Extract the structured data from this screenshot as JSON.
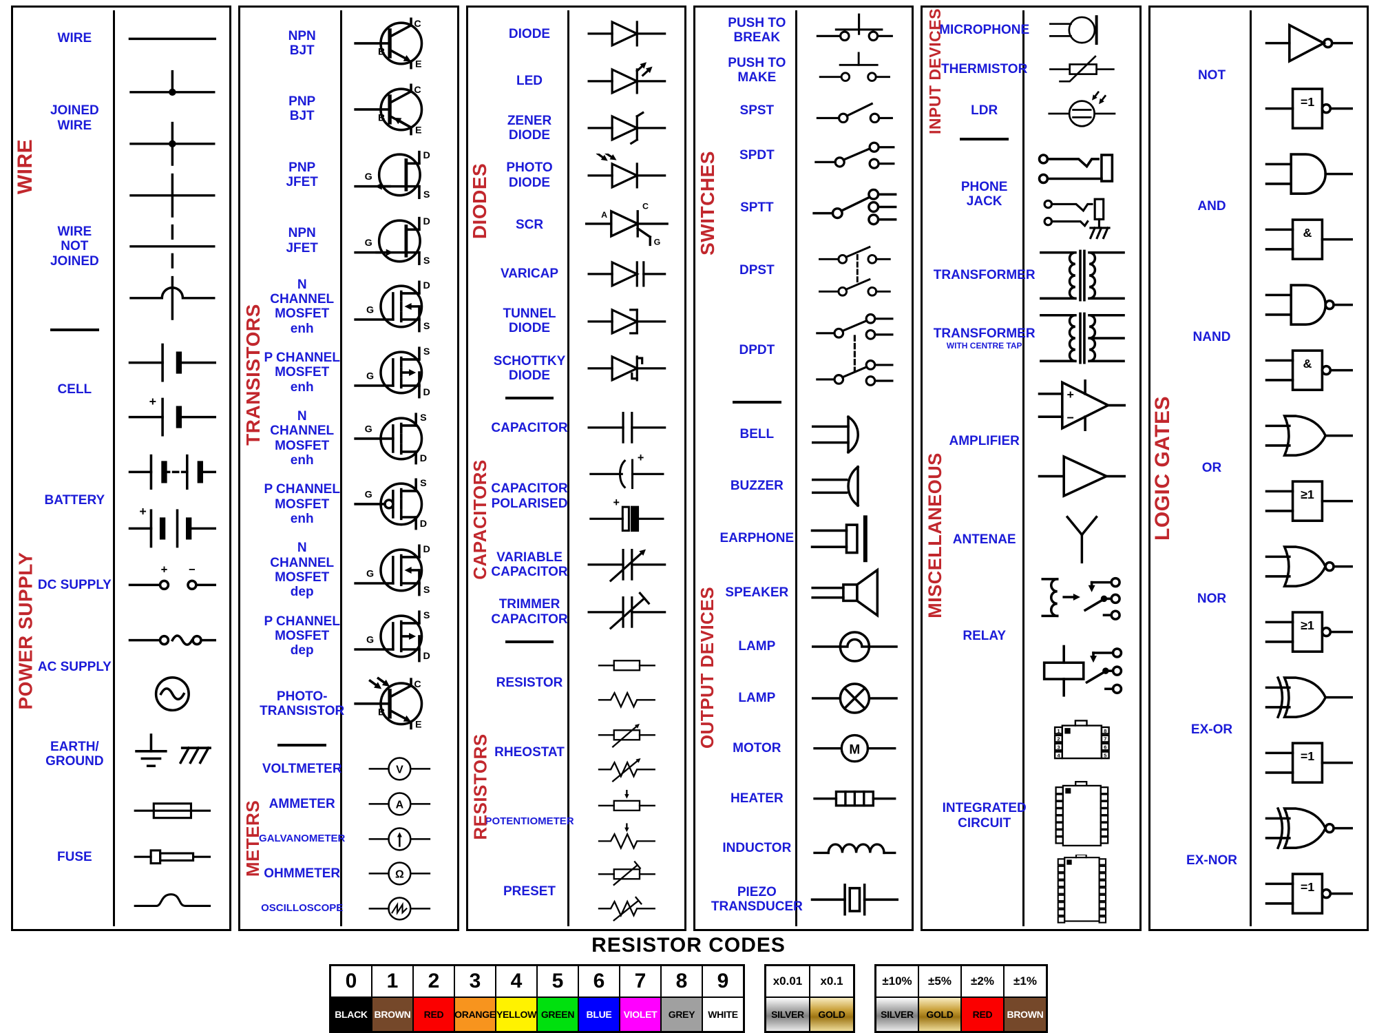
{
  "colors": {
    "label_blue": "#1b1bd8",
    "category_red": "#c1272d",
    "symbol_black": "#000000",
    "silver": "#c0c0c0",
    "gold": "#d4a437"
  },
  "glyph_text": {
    "bjt": {
      "base": "B",
      "collector": "C",
      "emitter": "E"
    },
    "fet": {
      "gate": "G",
      "drain": "D",
      "source": "S"
    },
    "scr": {
      "anode": "A",
      "cathode": "C",
      "gate": "G"
    },
    "meter": {
      "voltmeter": "V",
      "ammeter": "A",
      "ohmmeter": "Ω",
      "motor": "M"
    },
    "sign": {
      "plus": "+",
      "minus": "−"
    },
    "gate_box": {
      "not": "=1",
      "and": "&",
      "nand": "&",
      "or": "≥1",
      "nor": "≥1",
      "exor": "=1",
      "exnor": "=1"
    },
    "ic_pins_left": [
      "1",
      "2",
      "3",
      "4"
    ],
    "ic_pins_right": [
      "8",
      "7",
      "6",
      "5"
    ]
  },
  "panels": [
    {
      "sections": [
        {
          "label": "WIRE",
          "size": 30,
          "rows": [
            {
              "name": "WIRE",
              "symbols": [
                "wire"
              ],
              "h": 1.1
            },
            {
              "name": "JOINED\nWIRE",
              "symbols": [
                "joined-wire-tee",
                "joined-wire-cross"
              ],
              "h": 2
            },
            {
              "name": "WIRE\nNOT JOINED",
              "symbols": [
                "wire-crossover",
                "wire-break",
                "wire-hop"
              ],
              "h": 3
            }
          ]
        },
        {
          "divider": true
        },
        {
          "label": "POWER SUPPLY",
          "size": 28,
          "rows": [
            {
              "name": "CELL",
              "symbols": [
                "cell",
                "cell-polarity"
              ],
              "h": 2.1
            },
            {
              "name": "BATTERY",
              "symbols": [
                "battery-dashed",
                "battery-double"
              ],
              "h": 2.2
            },
            {
              "name": "DC SUPPLY",
              "symbols": [
                "dc-supply"
              ],
              "h": 1.1
            },
            {
              "name": "AC SUPPLY",
              "symbols": [
                "ac-supply-terminals",
                "ac-source"
              ],
              "h": 2.1
            },
            {
              "name": "EARTH/\nGROUND",
              "symbols": [
                "earth-ground"
              ],
              "h": 1.3
            },
            {
              "name": "FUSE",
              "symbols": [
                "fuse-box",
                "fuse-cartridge",
                "fuse-wave"
              ],
              "h": 2.7
            }
          ]
        }
      ]
    },
    {
      "sections": [
        {
          "label": "TRANSISTORS",
          "size": 28,
          "rows": [
            {
              "name": "NPN\nBJT",
              "symbols": [
                "npn-bjt"
              ],
              "h": 1.6
            },
            {
              "name": "PNP\nBJT",
              "symbols": [
                "pnp-bjt"
              ],
              "h": 1.6
            },
            {
              "name": "PNP\nJFET",
              "symbols": [
                "pnp-jfet"
              ],
              "h": 1.6
            },
            {
              "name": "NPN\nJFET",
              "symbols": [
                "npn-jfet"
              ],
              "h": 1.6
            },
            {
              "name": "N CHANNEL\nMOSFET enh",
              "symbols": [
                "mosfet-enh-n-1"
              ],
              "h": 1.6
            },
            {
              "name": "P CHANNEL\nMOSFET enh",
              "symbols": [
                "mosfet-enh-p-1"
              ],
              "h": 1.6
            },
            {
              "name": "N CHANNEL\nMOSFET enh",
              "symbols": [
                "mosfet-enh-n-2"
              ],
              "h": 1.6
            },
            {
              "name": "P CHANNEL\nMOSFET enh",
              "symbols": [
                "mosfet-enh-p-2"
              ],
              "h": 1.6
            },
            {
              "name": "N CHANNEL\nMOSFET dep",
              "symbols": [
                "mosfet-dep-n"
              ],
              "h": 1.6
            },
            {
              "name": "P CHANNEL\nMOSFET dep",
              "symbols": [
                "mosfet-dep-p"
              ],
              "h": 1.6
            },
            {
              "name": "PHOTO-\nTRANSISTOR",
              "symbols": [
                "photo-transistor"
              ],
              "h": 1.7
            }
          ]
        },
        {
          "divider": true
        },
        {
          "label": "METERS",
          "size": 26,
          "rows": [
            {
              "name": "VOLTMETER",
              "symbols": [
                "voltmeter"
              ],
              "h": 0.85
            },
            {
              "name": "AMMETER",
              "symbols": [
                "ammeter"
              ],
              "h": 0.85
            },
            {
              "name": "GALVANOMETER",
              "small": true,
              "symbols": [
                "galvanometer"
              ],
              "h": 0.85
            },
            {
              "name": "OHMMETER",
              "symbols": [
                "ohmmeter"
              ],
              "h": 0.85
            },
            {
              "name": "OSCILLOSCOPE",
              "small": true,
              "symbols": [
                "oscilloscope"
              ],
              "h": 0.85
            }
          ]
        }
      ]
    },
    {
      "sections": [
        {
          "label": "DIODES",
          "size": 28,
          "rows": [
            {
              "name": "DIODE",
              "symbols": [
                "diode"
              ],
              "h": 1.05
            },
            {
              "name": "LED",
              "symbols": [
                "led"
              ],
              "h": 1.05
            },
            {
              "name": "ZENER\nDIODE",
              "symbols": [
                "zener-diode"
              ],
              "h": 1.05
            },
            {
              "name": "PHOTO\nDIODE",
              "symbols": [
                "photo-diode"
              ],
              "h": 1.05
            },
            {
              "name": "SCR",
              "symbols": [
                "scr"
              ],
              "h": 1.15
            },
            {
              "name": "VARICAP",
              "symbols": [
                "varicap"
              ],
              "h": 1.05
            },
            {
              "name": "TUNNEL\nDIODE",
              "symbols": [
                "tunnel-diode"
              ],
              "h": 1.05
            },
            {
              "name": "SCHOTTKY\nDIODE",
              "symbols": [
                "schottky-diode"
              ],
              "h": 1.05
            }
          ]
        },
        {
          "divider": true
        },
        {
          "label": "CAPACITORS",
          "size": 26,
          "rows": [
            {
              "name": "CAPACITOR",
              "symbols": [
                "capacitor"
              ],
              "h": 1.05
            },
            {
              "name": "CAPACITOR\nPOLARISED",
              "symbols": [
                "capacitor-polarised-curved",
                "capacitor-polarised-block"
              ],
              "h": 2.0
            },
            {
              "name": "VARIABLE\nCAPACITOR",
              "symbols": [
                "variable-capacitor"
              ],
              "h": 1.05
            },
            {
              "name": "TRIMMER\nCAPACITOR",
              "symbols": [
                "trimmer-capacitor"
              ],
              "h": 1.05
            }
          ]
        },
        {
          "divider": true
        },
        {
          "label": "RESISTORS",
          "size": 26,
          "rows": [
            {
              "name": "RESISTOR",
              "symbols": [
                "resistor-box",
                "resistor-zigzag"
              ],
              "h": 1.55
            },
            {
              "name": "RHEOSTAT",
              "symbols": [
                "rheostat-box",
                "rheostat-zigzag"
              ],
              "h": 1.55
            },
            {
              "name": "POTENTIOMETER",
              "small": true,
              "symbols": [
                "potentiometer-box",
                "potentiometer-zigzag"
              ],
              "h": 1.55
            },
            {
              "name": "PRESET",
              "symbols": [
                "preset-box",
                "preset-zigzag"
              ],
              "h": 1.55
            }
          ]
        }
      ]
    },
    {
      "sections": [
        {
          "label": "SWITCHES",
          "size": 28,
          "rows": [
            {
              "name": "PUSH TO\nBREAK",
              "symbols": [
                "push-to-break"
              ],
              "h": 1.05
            },
            {
              "name": "PUSH TO\nMAKE",
              "symbols": [
                "push-to-make"
              ],
              "h": 1.05
            },
            {
              "name": "SPST",
              "symbols": [
                "spst"
              ],
              "h": 1.05
            },
            {
              "name": "SPDT",
              "symbols": [
                "spdt"
              ],
              "h": 1.3
            },
            {
              "name": "SPTT",
              "symbols": [
                "sptt"
              ],
              "h": 1.45
            },
            {
              "name": "DPST",
              "symbols": [
                "dpst"
              ],
              "h": 1.8
            },
            {
              "name": "DPDT",
              "symbols": [
                "dpdt"
              ],
              "h": 2.4
            }
          ]
        },
        {
          "divider": true
        },
        {
          "label": "OUTPUT DEVICES",
          "size": 26,
          "rows": [
            {
              "name": "BELL",
              "symbols": [
                "bell"
              ],
              "h": 1.35
            },
            {
              "name": "BUZZER",
              "symbols": [
                "buzzer"
              ],
              "h": 1.35
            },
            {
              "name": "EARPHONE",
              "symbols": [
                "earphone"
              ],
              "h": 1.4
            },
            {
              "name": "SPEAKER",
              "symbols": [
                "speaker"
              ],
              "h": 1.45
            },
            {
              "name": "LAMP",
              "symbols": [
                "lamp-filament"
              ],
              "h": 1.35
            },
            {
              "name": "LAMP",
              "symbols": [
                "lamp-cross"
              ],
              "h": 1.35
            },
            {
              "name": "MOTOR",
              "symbols": [
                "motor"
              ],
              "h": 1.3
            },
            {
              "name": "HEATER",
              "symbols": [
                "heater"
              ],
              "h": 1.3
            },
            {
              "name": "INDUCTOR",
              "symbols": [
                "inductor"
              ],
              "h": 1.3
            },
            {
              "name": "PIEZO\nTRANSDUCER",
              "symbols": [
                "piezo-transducer"
              ],
              "h": 1.4
            }
          ]
        }
      ]
    },
    {
      "sections": [
        {
          "label": "INPUT DEVICES",
          "size": 23,
          "rows": [
            {
              "name": "MICROPHONE",
              "symbols": [
                "microphone"
              ],
              "h": 1
            },
            {
              "name": "THERMISTOR",
              "symbols": [
                "thermistor"
              ],
              "h": 1
            },
            {
              "name": "LDR",
              "symbols": [
                "ldr"
              ],
              "h": 1.1
            }
          ]
        },
        {
          "divider": true
        },
        {
          "label": "MISCELLANEOUS",
          "size": 27,
          "rows": [
            {
              "name": "PHONE JACK",
              "symbols": [
                "phone-jack-open",
                "phone-jack-grounded"
              ],
              "h": 2.5
            },
            {
              "name": "TRANSFORMER",
              "symbols": [
                "transformer"
              ],
              "h": 1.6
            },
            {
              "name": "TRANSFORMER",
              "sub": "WITH CENTRE TAP",
              "symbols": [
                "transformer-centre-tap"
              ],
              "h": 1.6
            },
            {
              "name": "AMPLIFIER",
              "symbols": [
                "op-amp",
                "amplifier-triangle"
              ],
              "h": 3.6
            },
            {
              "name": "ANTENAE",
              "symbols": [
                "antenna"
              ],
              "h": 1.4
            },
            {
              "name": "RELAY",
              "symbols": [
                "relay-coil",
                "relay-box"
              ],
              "h": 3.5
            },
            {
              "name": "INTEGRATED\nCIRCUIT",
              "symbols": [
                "ic-8pin",
                "ic-16pin",
                "ic-18pin"
              ],
              "h": 5.6
            }
          ]
        }
      ]
    },
    {
      "sections": [
        {
          "label": "LOGIC GATES",
          "size": 30,
          "rows": [
            {
              "name": "NOT",
              "symbols": [
                "not-gate",
                "not-iec"
              ],
              "h": 2
            },
            {
              "name": "AND",
              "symbols": [
                "and-gate",
                "and-iec"
              ],
              "h": 2
            },
            {
              "name": "NAND",
              "symbols": [
                "nand-gate",
                "nand-iec"
              ],
              "h": 2
            },
            {
              "name": "OR",
              "symbols": [
                "or-gate",
                "or-iec"
              ],
              "h": 2
            },
            {
              "name": "NOR",
              "symbols": [
                "nor-gate",
                "nor-iec"
              ],
              "h": 2
            },
            {
              "name": "EX-OR",
              "symbols": [
                "exor-gate",
                "exor-iec"
              ],
              "h": 2
            },
            {
              "name": "EX-NOR",
              "symbols": [
                "exnor-gate",
                "exnor-iec"
              ],
              "h": 2
            }
          ]
        }
      ]
    }
  ],
  "resistor_codes": {
    "title": "RESISTOR CODES",
    "digits": [
      {
        "digit": "0",
        "color_name": "BLACK",
        "bg": "#000000",
        "fg": "#ffffff"
      },
      {
        "digit": "1",
        "color_name": "BROWN",
        "bg": "#75482a",
        "fg": "#ffffff"
      },
      {
        "digit": "2",
        "color_name": "RED",
        "bg": "#fb0000",
        "fg": "#000000"
      },
      {
        "digit": "3",
        "color_name": "ORANGE",
        "bg": "#f7941e",
        "fg": "#000000"
      },
      {
        "digit": "4",
        "color_name": "YELLOW",
        "bg": "#fff200",
        "fg": "#000000"
      },
      {
        "digit": "5",
        "color_name": "GREEN",
        "bg": "#00e00e",
        "fg": "#000000"
      },
      {
        "digit": "6",
        "color_name": "BLUE",
        "bg": "#0000ff",
        "fg": "#ffffff"
      },
      {
        "digit": "7",
        "color_name": "VIOLET",
        "bg": "#ff00ff",
        "fg": "#ffffff"
      },
      {
        "digit": "8",
        "color_name": "GREY",
        "bg": "#a0a0a0",
        "fg": "#000000"
      },
      {
        "digit": "9",
        "color_name": "WHITE",
        "bg": "#ffffff",
        "fg": "#000000"
      }
    ],
    "multipliers": [
      {
        "value": "x0.01",
        "color_name": "SILVER",
        "finish": "silver",
        "fg": "#000000"
      },
      {
        "value": "x0.1",
        "color_name": "GOLD",
        "finish": "gold",
        "fg": "#000000"
      }
    ],
    "tolerances": [
      {
        "value": "±10%",
        "color_name": "SILVER",
        "finish": "silver",
        "fg": "#000000"
      },
      {
        "value": "±5%",
        "color_name": "GOLD",
        "finish": "gold",
        "fg": "#000000"
      },
      {
        "value": "±2%",
        "color_name": "RED",
        "bg": "#fb0000",
        "fg": "#000000"
      },
      {
        "value": "±1%",
        "color_name": "BROWN",
        "bg": "#75482a",
        "fg": "#ffffff"
      }
    ]
  }
}
